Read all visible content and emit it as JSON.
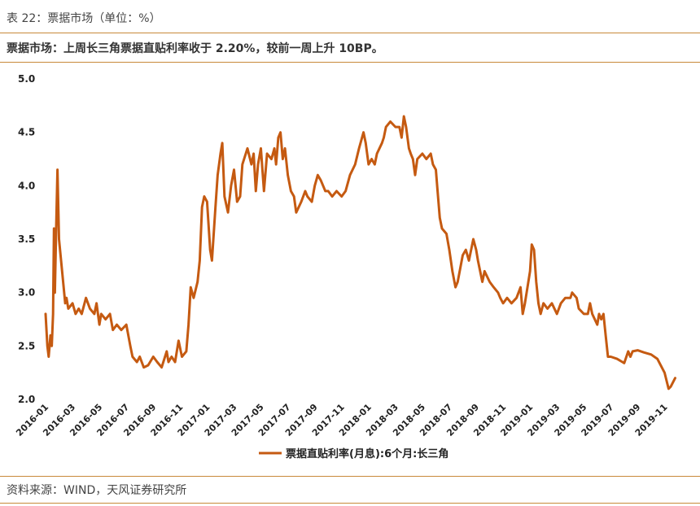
{
  "caption": "表 22：票据市场（单位：%）",
  "summary": "票据市场：上周长三角票据直贴利率收于 2.20%，较前一周上升 10BP。",
  "source": "资料来源：WIND，天风证券研究所",
  "colors": {
    "line": "#c55a11",
    "rule": "#c8893a"
  },
  "chart_data": {
    "type": "line",
    "title": "",
    "xlabel": "",
    "ylabel": "",
    "ylim": [
      2.0,
      5.0
    ],
    "yticks": [
      "2.0",
      "2.5",
      "3.0",
      "3.5",
      "4.0",
      "4.5",
      "5.0"
    ],
    "xlim": [
      "2016-01",
      "2019-12.3"
    ],
    "xticks": [
      "2016-01",
      "2016-03",
      "2016-05",
      "2016-07",
      "2016-09",
      "2016-11",
      "2017-01",
      "2017-03",
      "2017-05",
      "2017-07",
      "2017-09",
      "2017-11",
      "2018-01",
      "2018-03",
      "2018-05",
      "2018-07",
      "2018-09",
      "2018-11",
      "2019-01",
      "2019-03",
      "2019-05",
      "2019-07",
      "2019-09",
      "2019-11"
    ],
    "legend_position": "bottom",
    "grid": false,
    "series": [
      {
        "name": "票据直贴利率(月息):6个月:长三角",
        "points": [
          [
            "2016-01-01",
            2.8
          ],
          [
            "2016-01-05",
            2.5
          ],
          [
            "2016-01-08",
            2.4
          ],
          [
            "2016-01-12",
            2.6
          ],
          [
            "2016-01-15",
            2.5
          ],
          [
            "2016-01-18",
            2.8
          ],
          [
            "2016-01-20",
            3.6
          ],
          [
            "2016-01-22",
            3.0
          ],
          [
            "2016-01-25",
            3.6
          ],
          [
            "2016-01-28",
            4.15
          ],
          [
            "2016-02-01",
            3.5
          ],
          [
            "2016-02-08",
            3.2
          ],
          [
            "2016-02-15",
            2.9
          ],
          [
            "2016-02-18",
            2.95
          ],
          [
            "2016-02-22",
            2.85
          ],
          [
            "2016-03-01",
            2.9
          ],
          [
            "2016-03-08",
            2.8
          ],
          [
            "2016-03-15",
            2.85
          ],
          [
            "2016-03-22",
            2.8
          ],
          [
            "2016-04-01",
            2.95
          ],
          [
            "2016-04-10",
            2.85
          ],
          [
            "2016-04-20",
            2.8
          ],
          [
            "2016-04-25",
            2.9
          ],
          [
            "2016-05-01",
            2.7
          ],
          [
            "2016-05-05",
            2.8
          ],
          [
            "2016-05-15",
            2.75
          ],
          [
            "2016-05-25",
            2.8
          ],
          [
            "2016-06-01",
            2.65
          ],
          [
            "2016-06-10",
            2.7
          ],
          [
            "2016-06-20",
            2.65
          ],
          [
            "2016-07-01",
            2.7
          ],
          [
            "2016-07-10",
            2.5
          ],
          [
            "2016-07-15",
            2.4
          ],
          [
            "2016-07-25",
            2.35
          ],
          [
            "2016-08-01",
            2.4
          ],
          [
            "2016-08-10",
            2.3
          ],
          [
            "2016-08-20",
            2.32
          ],
          [
            "2016-09-01",
            2.4
          ],
          [
            "2016-09-10",
            2.35
          ],
          [
            "2016-09-20",
            2.3
          ],
          [
            "2016-10-01",
            2.45
          ],
          [
            "2016-10-05",
            2.35
          ],
          [
            "2016-10-12",
            2.4
          ],
          [
            "2016-10-20",
            2.35
          ],
          [
            "2016-10-28",
            2.55
          ],
          [
            "2016-11-05",
            2.4
          ],
          [
            "2016-11-15",
            2.45
          ],
          [
            "2016-11-20",
            2.7
          ],
          [
            "2016-11-25",
            3.05
          ],
          [
            "2016-12-01",
            2.95
          ],
          [
            "2016-12-10",
            3.1
          ],
          [
            "2016-12-15",
            3.3
          ],
          [
            "2016-12-20",
            3.8
          ],
          [
            "2016-12-25",
            3.9
          ],
          [
            "2017-01-01",
            3.85
          ],
          [
            "2017-01-08",
            3.4
          ],
          [
            "2017-01-12",
            3.3
          ],
          [
            "2017-01-20",
            3.8
          ],
          [
            "2017-01-25",
            4.1
          ],
          [
            "2017-02-01",
            4.3
          ],
          [
            "2017-02-05",
            4.4
          ],
          [
            "2017-02-10",
            3.9
          ],
          [
            "2017-02-18",
            3.75
          ],
          [
            "2017-02-25",
            4.0
          ],
          [
            "2017-03-01",
            4.15
          ],
          [
            "2017-03-08",
            3.85
          ],
          [
            "2017-03-15",
            3.9
          ],
          [
            "2017-03-20",
            4.2
          ],
          [
            "2017-04-01",
            4.35
          ],
          [
            "2017-04-10",
            4.2
          ],
          [
            "2017-04-15",
            4.3
          ],
          [
            "2017-04-20",
            3.95
          ],
          [
            "2017-04-25",
            4.2
          ],
          [
            "2017-05-01",
            4.35
          ],
          [
            "2017-05-08",
            3.95
          ],
          [
            "2017-05-15",
            4.3
          ],
          [
            "2017-05-25",
            4.25
          ],
          [
            "2017-06-01",
            4.35
          ],
          [
            "2017-06-05",
            4.2
          ],
          [
            "2017-06-10",
            4.45
          ],
          [
            "2017-06-15",
            4.5
          ],
          [
            "2017-06-20",
            4.25
          ],
          [
            "2017-06-25",
            4.35
          ],
          [
            "2017-07-01",
            4.1
          ],
          [
            "2017-07-08",
            3.95
          ],
          [
            "2017-07-15",
            3.9
          ],
          [
            "2017-07-20",
            3.75
          ],
          [
            "2017-08-01",
            3.85
          ],
          [
            "2017-08-10",
            3.95
          ],
          [
            "2017-08-15",
            3.9
          ],
          [
            "2017-08-25",
            3.85
          ],
          [
            "2017-09-01",
            4.0
          ],
          [
            "2017-09-08",
            4.1
          ],
          [
            "2017-09-15",
            4.05
          ],
          [
            "2017-09-25",
            3.95
          ],
          [
            "2017-10-01",
            3.95
          ],
          [
            "2017-10-10",
            3.9
          ],
          [
            "2017-10-20",
            3.95
          ],
          [
            "2017-11-01",
            3.9
          ],
          [
            "2017-11-10",
            3.95
          ],
          [
            "2017-11-20",
            4.1
          ],
          [
            "2017-12-01",
            4.2
          ],
          [
            "2017-12-10",
            4.35
          ],
          [
            "2017-12-20",
            4.5
          ],
          [
            "2017-12-25",
            4.4
          ],
          [
            "2018-01-01",
            4.2
          ],
          [
            "2018-01-08",
            4.25
          ],
          [
            "2018-01-15",
            4.2
          ],
          [
            "2018-01-20",
            4.3
          ],
          [
            "2018-02-01",
            4.4
          ],
          [
            "2018-02-05",
            4.45
          ],
          [
            "2018-02-10",
            4.55
          ],
          [
            "2018-02-20",
            4.6
          ],
          [
            "2018-03-01",
            4.55
          ],
          [
            "2018-03-10",
            4.55
          ],
          [
            "2018-03-15",
            4.45
          ],
          [
            "2018-03-20",
            4.65
          ],
          [
            "2018-03-25",
            4.55
          ],
          [
            "2018-04-01",
            4.35
          ],
          [
            "2018-04-05",
            4.3
          ],
          [
            "2018-04-10",
            4.25
          ],
          [
            "2018-04-15",
            4.1
          ],
          [
            "2018-04-20",
            4.25
          ],
          [
            "2018-05-01",
            4.3
          ],
          [
            "2018-05-10",
            4.25
          ],
          [
            "2018-05-20",
            4.3
          ],
          [
            "2018-05-25",
            4.2
          ],
          [
            "2018-06-01",
            4.15
          ],
          [
            "2018-06-05",
            3.95
          ],
          [
            "2018-06-10",
            3.7
          ],
          [
            "2018-06-15",
            3.6
          ],
          [
            "2018-06-25",
            3.55
          ],
          [
            "2018-07-01",
            3.4
          ],
          [
            "2018-07-08",
            3.2
          ],
          [
            "2018-07-15",
            3.05
          ],
          [
            "2018-07-20",
            3.1
          ],
          [
            "2018-08-01",
            3.35
          ],
          [
            "2018-08-08",
            3.4
          ],
          [
            "2018-08-15",
            3.3
          ],
          [
            "2018-08-25",
            3.5
          ],
          [
            "2018-09-01",
            3.4
          ],
          [
            "2018-09-05",
            3.3
          ],
          [
            "2018-09-10",
            3.2
          ],
          [
            "2018-09-15",
            3.1
          ],
          [
            "2018-09-20",
            3.2
          ],
          [
            "2018-10-01",
            3.1
          ],
          [
            "2018-10-10",
            3.05
          ],
          [
            "2018-10-20",
            3.0
          ],
          [
            "2018-10-25",
            2.95
          ],
          [
            "2018-11-01",
            2.9
          ],
          [
            "2018-11-10",
            2.95
          ],
          [
            "2018-11-20",
            2.9
          ],
          [
            "2018-12-01",
            2.95
          ],
          [
            "2018-12-10",
            3.05
          ],
          [
            "2018-12-15",
            2.8
          ],
          [
            "2018-12-20",
            2.9
          ],
          [
            "2019-01-01",
            3.2
          ],
          [
            "2019-01-05",
            3.45
          ],
          [
            "2019-01-10",
            3.4
          ],
          [
            "2019-01-15",
            3.1
          ],
          [
            "2019-01-20",
            2.9
          ],
          [
            "2019-01-25",
            2.8
          ],
          [
            "2019-02-01",
            2.9
          ],
          [
            "2019-02-10",
            2.85
          ],
          [
            "2019-02-20",
            2.9
          ],
          [
            "2019-03-01",
            2.8
          ],
          [
            "2019-03-10",
            2.9
          ],
          [
            "2019-03-20",
            2.95
          ],
          [
            "2019-04-01",
            2.95
          ],
          [
            "2019-04-05",
            3.0
          ],
          [
            "2019-04-15",
            2.95
          ],
          [
            "2019-04-20",
            2.85
          ],
          [
            "2019-05-01",
            2.8
          ],
          [
            "2019-05-10",
            2.8
          ],
          [
            "2019-05-15",
            2.9
          ],
          [
            "2019-05-20",
            2.8
          ],
          [
            "2019-06-01",
            2.7
          ],
          [
            "2019-06-05",
            2.8
          ],
          [
            "2019-06-10",
            2.75
          ],
          [
            "2019-06-15",
            2.8
          ],
          [
            "2019-06-20",
            2.6
          ],
          [
            "2019-06-25",
            2.4
          ],
          [
            "2019-07-01",
            2.4
          ],
          [
            "2019-07-15",
            2.38
          ],
          [
            "2019-08-01",
            2.34
          ],
          [
            "2019-08-10",
            2.45
          ],
          [
            "2019-08-15",
            2.4
          ],
          [
            "2019-08-20",
            2.45
          ],
          [
            "2019-09-01",
            2.46
          ],
          [
            "2019-09-15",
            2.44
          ],
          [
            "2019-10-01",
            2.42
          ],
          [
            "2019-10-15",
            2.38
          ],
          [
            "2019-11-01",
            2.25
          ],
          [
            "2019-11-10",
            2.1
          ],
          [
            "2019-11-15",
            2.12
          ],
          [
            "2019-11-25",
            2.2
          ]
        ]
      }
    ]
  }
}
